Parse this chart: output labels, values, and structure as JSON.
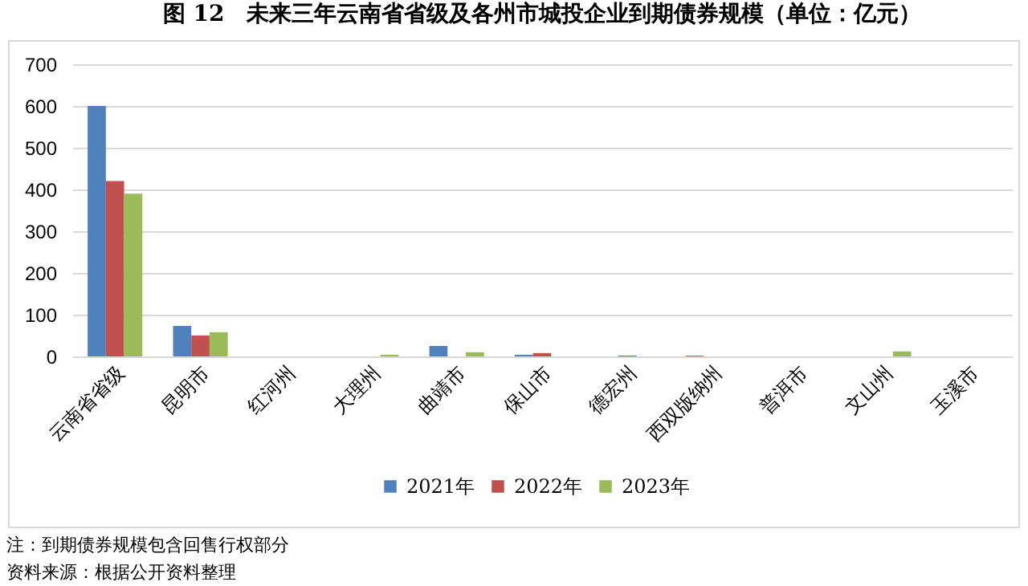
{
  "chart_data": {
    "type": "bar",
    "title": "图 12　未来三年云南省省级及各州市城投企业到期债券规模（单位：亿元）",
    "categories": [
      "云南省省级",
      "昆明市",
      "红河州",
      "大理州",
      "曲靖市",
      "保山市",
      "德宏州",
      "西双版纳州",
      "普洱市",
      "文山州",
      "玉溪市"
    ],
    "series": [
      {
        "name": "2021年",
        "color": "#4f81bd",
        "values": [
          600,
          73,
          0,
          0,
          25,
          4,
          0,
          2,
          0,
          0,
          0
        ]
      },
      {
        "name": "2022年",
        "color": "#c0504d",
        "values": [
          420,
          50,
          0,
          0,
          0,
          8,
          2,
          0,
          0,
          0,
          0
        ]
      },
      {
        "name": "2023年",
        "color": "#9bbb59",
        "values": [
          390,
          58,
          0,
          4,
          10,
          0,
          0,
          0,
          0,
          12,
          0
        ]
      }
    ],
    "ylim": [
      0,
      700
    ],
    "yticks": [
      0,
      100,
      200,
      300,
      400,
      500,
      600,
      700
    ],
    "grid": "y",
    "legend": "bottom",
    "annotations": [
      "注：到期债券规模包含回售行权部分",
      "资料来源：根据公开资料整理"
    ]
  }
}
